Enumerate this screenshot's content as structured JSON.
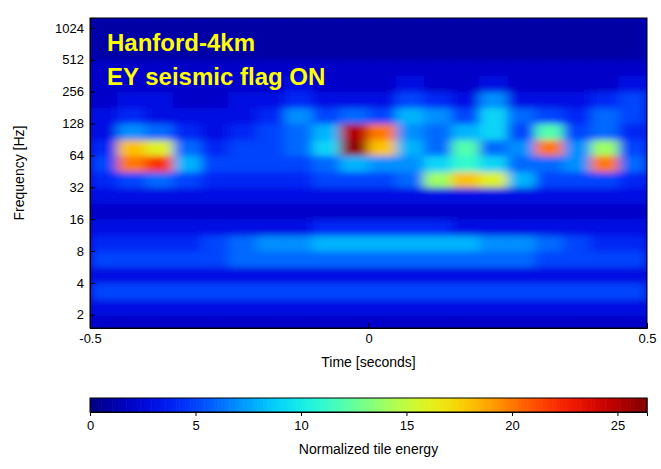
{
  "chart_data": {
    "type": "heatmap",
    "annotations": [
      "Hanford-4km",
      "EY seismic flag ON"
    ],
    "x_label": "Time [seconds]",
    "y_label": "Frequency [Hz]",
    "log": "y",
    "xlim": [
      -0.5,
      0.5
    ],
    "xticks": [
      -0.5,
      0,
      0.5
    ],
    "ylim": [
      1.5,
      1270
    ],
    "yticks": [
      2,
      4,
      8,
      16,
      32,
      64,
      128,
      256,
      512,
      1024
    ],
    "x_bins": [
      -0.5,
      -0.45,
      -0.4,
      -0.35,
      -0.3,
      -0.25,
      -0.2,
      -0.15,
      -0.1,
      -0.05,
      0,
      0.05,
      0.1,
      0.15,
      0.2,
      0.25,
      0.3,
      0.35,
      0.4,
      0.45,
      0.5
    ],
    "y_bins": [
      1.5,
      2,
      2.8,
      4,
      5.7,
      8,
      11.3,
      16,
      22.6,
      32,
      45,
      64,
      90,
      128,
      181,
      256,
      362,
      512,
      724,
      1024,
      1270
    ],
    "z": [
      [
        2,
        2,
        2,
        2,
        2,
        2,
        2,
        2,
        2,
        2,
        2,
        2,
        2,
        2,
        2,
        2,
        2,
        2,
        2,
        2
      ],
      [
        3,
        3,
        3,
        3,
        3,
        3,
        3,
        3,
        3,
        3,
        3,
        3,
        3,
        3,
        3,
        3,
        3,
        3,
        3,
        3
      ],
      [
        5,
        5,
        5,
        5,
        5,
        5,
        5,
        5,
        5,
        5,
        5,
        5,
        5,
        5,
        5,
        5,
        5,
        5,
        5,
        5
      ],
      [
        3,
        3,
        3,
        3,
        3,
        3,
        3,
        3,
        3,
        3,
        3,
        3,
        3,
        3,
        3,
        3,
        3,
        3,
        3,
        3
      ],
      [
        5,
        5,
        5,
        5,
        5,
        6,
        6,
        6,
        6,
        6,
        6,
        6,
        6,
        6,
        6,
        6,
        5,
        5,
        5,
        5
      ],
      [
        4,
        4,
        4,
        4,
        5,
        6,
        7,
        7,
        8,
        8,
        8,
        8,
        8,
        8,
        7,
        7,
        6,
        5,
        4,
        4
      ],
      [
        3,
        3,
        3,
        3,
        3,
        3,
        3,
        3,
        4,
        4,
        4,
        4,
        4,
        3,
        3,
        3,
        3,
        3,
        3,
        3
      ],
      [
        2,
        2,
        2,
        2,
        2,
        2,
        2,
        2,
        2,
        2,
        2,
        2,
        2,
        2,
        2,
        2,
        2,
        2,
        2,
        2
      ],
      [
        3,
        3,
        3,
        3,
        3,
        3,
        3,
        3,
        3,
        3,
        3,
        3,
        3,
        3,
        3,
        3,
        3,
        3,
        3,
        3
      ],
      [
        4,
        5,
        6,
        5,
        4,
        4,
        4,
        4,
        5,
        5,
        5,
        6,
        14,
        18,
        16,
        8,
        5,
        5,
        5,
        4
      ],
      [
        5,
        20,
        22,
        8,
        5,
        5,
        5,
        5,
        6,
        8,
        7,
        7,
        9,
        11,
        9,
        6,
        6,
        7,
        20,
        6
      ],
      [
        4,
        18,
        16,
        6,
        4,
        5,
        5,
        6,
        9,
        26,
        18,
        8,
        6,
        12,
        6,
        7,
        20,
        7,
        14,
        5
      ],
      [
        3,
        7,
        6,
        4,
        3,
        4,
        5,
        6,
        8,
        25,
        20,
        7,
        6,
        8,
        9,
        5,
        12,
        5,
        6,
        4
      ],
      [
        3,
        4,
        3,
        3,
        3,
        3,
        4,
        7,
        5,
        6,
        5,
        8,
        7,
        5,
        9,
        6,
        5,
        4,
        6,
        5
      ],
      [
        2,
        3,
        3,
        2,
        2,
        3,
        3,
        4,
        3,
        3,
        3,
        5,
        4,
        3,
        7,
        3,
        3,
        3,
        4,
        5
      ],
      [
        2,
        2,
        2,
        2,
        2,
        2,
        2,
        3,
        2,
        2,
        2,
        3,
        2,
        2,
        3,
        2,
        2,
        2,
        2,
        3
      ],
      [
        2,
        2,
        2,
        2,
        2,
        2,
        2,
        2,
        2,
        2,
        2,
        2,
        2,
        2,
        2,
        2,
        2,
        2,
        2,
        2
      ],
      [
        1,
        1,
        1,
        1,
        1,
        1,
        1,
        1,
        1,
        1,
        1,
        1,
        1,
        1,
        1,
        1,
        1,
        1,
        1,
        1
      ],
      [
        1,
        1,
        1,
        1,
        1,
        1,
        1,
        1,
        1,
        1,
        1,
        1,
        1,
        1,
        1,
        1,
        1,
        1,
        1,
        1
      ],
      [
        1,
        1,
        1,
        1,
        1,
        1,
        1,
        1,
        1,
        1,
        1,
        1,
        1,
        1,
        1,
        1,
        1,
        1,
        1,
        1
      ]
    ],
    "colorbar": {
      "label": "Normalized tile energy",
      "range": [
        0,
        26.4
      ],
      "ticks": [
        0,
        5,
        10,
        15,
        20,
        25
      ]
    }
  }
}
